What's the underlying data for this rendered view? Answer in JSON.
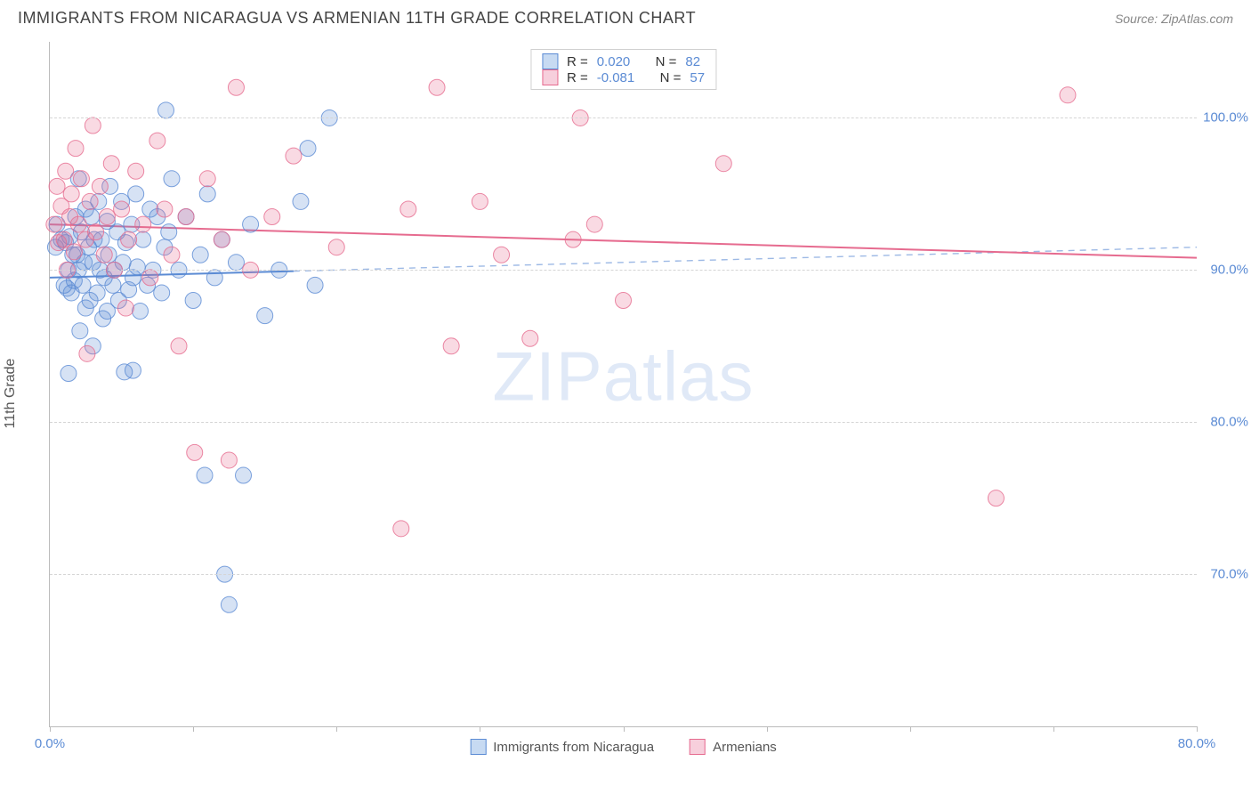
{
  "title": "IMMIGRANTS FROM NICARAGUA VS ARMENIAN 11TH GRADE CORRELATION CHART",
  "source": "Source: ZipAtlas.com",
  "ylabel": "11th Grade",
  "watermark_bold": "ZIP",
  "watermark_thin": "atlas",
  "chart": {
    "type": "scatter",
    "xlim": [
      0,
      80
    ],
    "ylim": [
      60,
      105
    ],
    "xtick_values": [
      0,
      10,
      20,
      30,
      40,
      50,
      60,
      70,
      80
    ],
    "xtick_labels": [
      "0.0%",
      "",
      "",
      "",
      "",
      "",
      "",
      "",
      "80.0%"
    ],
    "ytick_values": [
      70,
      80,
      90,
      100
    ],
    "ytick_labels": [
      "70.0%",
      "80.0%",
      "90.0%",
      "100.0%"
    ],
    "grid_color": "#d5d5d5",
    "marker_radius": 9,
    "marker_fill_opacity": 0.25,
    "marker_stroke_opacity": 0.8,
    "line_width": 2,
    "series": [
      {
        "name": "Immigrants from Nicaragua",
        "short": "nicaragua",
        "color": "#5b8bd4",
        "r_label": "R = ",
        "r_value": "0.020",
        "n_label": "N = ",
        "n_value": "82",
        "regression": {
          "x1": 0,
          "y1": 89.5,
          "x2": 80,
          "y2": 91.5,
          "dash_after_x": 17
        },
        "points": [
          [
            0.4,
            91.5
          ],
          [
            0.5,
            93.0
          ],
          [
            0.8,
            92.0
          ],
          [
            1.0,
            89.0
          ],
          [
            1.1,
            91.8
          ],
          [
            1.2,
            88.8
          ],
          [
            1.3,
            90.0
          ],
          [
            1.3,
            83.2
          ],
          [
            1.4,
            92.2
          ],
          [
            1.5,
            88.5
          ],
          [
            1.6,
            91.0
          ],
          [
            1.7,
            89.3
          ],
          [
            1.8,
            93.5
          ],
          [
            1.9,
            91.0
          ],
          [
            2.0,
            90.0
          ],
          [
            2.0,
            96.0
          ],
          [
            2.1,
            86.0
          ],
          [
            2.2,
            92.5
          ],
          [
            2.3,
            89.0
          ],
          [
            2.4,
            90.5
          ],
          [
            2.5,
            94.0
          ],
          [
            2.5,
            87.5
          ],
          [
            2.7,
            91.5
          ],
          [
            2.8,
            88.0
          ],
          [
            2.9,
            93.5
          ],
          [
            3.0,
            90.5
          ],
          [
            3.0,
            85.0
          ],
          [
            3.1,
            92.0
          ],
          [
            3.3,
            88.5
          ],
          [
            3.4,
            94.5
          ],
          [
            3.5,
            90.0
          ],
          [
            3.6,
            92.0
          ],
          [
            3.7,
            86.8
          ],
          [
            3.8,
            89.5
          ],
          [
            4.0,
            93.2
          ],
          [
            4.0,
            87.3
          ],
          [
            4.1,
            91.0
          ],
          [
            4.2,
            95.5
          ],
          [
            4.4,
            89.0
          ],
          [
            4.5,
            90.0
          ],
          [
            4.7,
            92.5
          ],
          [
            4.8,
            88.0
          ],
          [
            5.0,
            94.5
          ],
          [
            5.1,
            90.5
          ],
          [
            5.2,
            83.3
          ],
          [
            5.3,
            91.8
          ],
          [
            5.5,
            88.7
          ],
          [
            5.7,
            93.0
          ],
          [
            5.8,
            89.5
          ],
          [
            5.8,
            83.4
          ],
          [
            6.0,
            95.0
          ],
          [
            6.1,
            90.2
          ],
          [
            6.3,
            87.3
          ],
          [
            6.5,
            92.0
          ],
          [
            6.8,
            89.0
          ],
          [
            7.0,
            94.0
          ],
          [
            7.2,
            90.0
          ],
          [
            7.5,
            93.5
          ],
          [
            7.8,
            88.5
          ],
          [
            8.0,
            91.5
          ],
          [
            8.1,
            100.5
          ],
          [
            8.3,
            92.5
          ],
          [
            8.5,
            96.0
          ],
          [
            9.0,
            90.0
          ],
          [
            9.5,
            93.5
          ],
          [
            10.0,
            88.0
          ],
          [
            10.5,
            91.0
          ],
          [
            10.8,
            76.5
          ],
          [
            11.0,
            95.0
          ],
          [
            11.5,
            89.5
          ],
          [
            12.0,
            92.0
          ],
          [
            12.2,
            70.0
          ],
          [
            12.5,
            68.0
          ],
          [
            13.0,
            90.5
          ],
          [
            13.5,
            76.5
          ],
          [
            14.0,
            93.0
          ],
          [
            15.0,
            87.0
          ],
          [
            16.0,
            90.0
          ],
          [
            17.5,
            94.5
          ],
          [
            18.0,
            98.0
          ],
          [
            18.5,
            89.0
          ],
          [
            19.5,
            100.0
          ]
        ]
      },
      {
        "name": "Armenians",
        "short": "armenians",
        "color": "#e66b8f",
        "r_label": "R = ",
        "r_value": "-0.081",
        "n_label": "N = ",
        "n_value": "57",
        "regression": {
          "x1": 0,
          "y1": 93.0,
          "x2": 80,
          "y2": 90.8,
          "dash_after_x": 80
        },
        "points": [
          [
            0.3,
            93.0
          ],
          [
            0.5,
            95.5
          ],
          [
            0.6,
            91.8
          ],
          [
            0.8,
            94.2
          ],
          [
            1.0,
            92.0
          ],
          [
            1.1,
            96.5
          ],
          [
            1.2,
            90.0
          ],
          [
            1.4,
            93.5
          ],
          [
            1.5,
            95.0
          ],
          [
            1.7,
            91.2
          ],
          [
            1.8,
            98.0
          ],
          [
            2.0,
            93.0
          ],
          [
            2.2,
            96.0
          ],
          [
            2.5,
            92.0
          ],
          [
            2.6,
            84.5
          ],
          [
            2.8,
            94.5
          ],
          [
            3.0,
            99.5
          ],
          [
            3.2,
            92.5
          ],
          [
            3.5,
            95.5
          ],
          [
            3.8,
            91.0
          ],
          [
            4.0,
            93.5
          ],
          [
            4.3,
            97.0
          ],
          [
            4.5,
            90.0
          ],
          [
            5.0,
            94.0
          ],
          [
            5.3,
            87.5
          ],
          [
            5.5,
            92.0
          ],
          [
            6.0,
            96.5
          ],
          [
            6.5,
            93.0
          ],
          [
            7.0,
            89.5
          ],
          [
            7.5,
            98.5
          ],
          [
            8.0,
            94.0
          ],
          [
            8.5,
            91.0
          ],
          [
            9.0,
            85.0
          ],
          [
            9.5,
            93.5
          ],
          [
            10.1,
            78.0
          ],
          [
            11.0,
            96.0
          ],
          [
            12.0,
            92.0
          ],
          [
            12.5,
            77.5
          ],
          [
            13.0,
            102.0
          ],
          [
            14.0,
            90.0
          ],
          [
            15.5,
            93.5
          ],
          [
            17.0,
            97.5
          ],
          [
            20.0,
            91.5
          ],
          [
            24.5,
            73.0
          ],
          [
            25.0,
            94.0
          ],
          [
            27.0,
            102.0
          ],
          [
            28.0,
            85.0
          ],
          [
            30.0,
            94.5
          ],
          [
            31.5,
            91.0
          ],
          [
            33.5,
            85.5
          ],
          [
            36.5,
            92.0
          ],
          [
            37.0,
            100.0
          ],
          [
            38.0,
            93.0
          ],
          [
            40.0,
            88.0
          ],
          [
            47.0,
            97.0
          ],
          [
            66.0,
            75.0
          ],
          [
            71.0,
            101.5
          ]
        ]
      }
    ]
  },
  "bottom_legend": [
    {
      "label": "Immigrants from Nicaragua",
      "color": "#5b8bd4",
      "fill": "#c7daf2"
    },
    {
      "label": "Armenians",
      "color": "#e66b8f",
      "fill": "#f7cfdc"
    }
  ]
}
